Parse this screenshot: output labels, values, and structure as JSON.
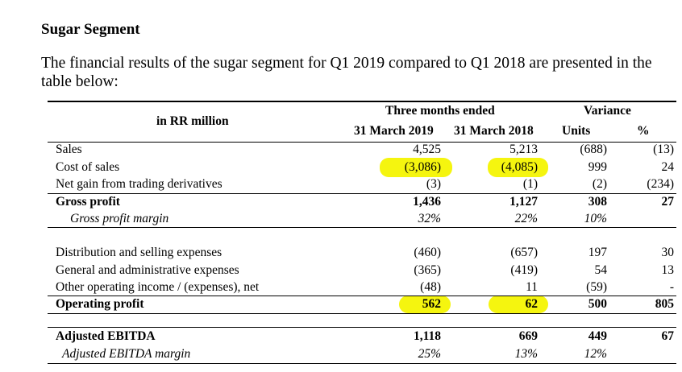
{
  "section_title": "Sugar Segment",
  "intro_text": "The financial results of the sugar segment for Q1 2019 compared to Q1 2018 are presented in the table below:",
  "highlight_color": "#f5f50f",
  "table": {
    "unit_label": "in RR million",
    "group_header": "Three months ended",
    "variance_header": "Variance",
    "col_2019": "31 March 2019",
    "col_2018": "31 March 2018",
    "col_units": "Units",
    "col_pct": "%",
    "rows": [
      {
        "label": "Sales",
        "v2019": "4,525",
        "v2018": "5,213",
        "units": "(688)",
        "pct": "(13)"
      },
      {
        "label": "Cost of sales",
        "v2019": "(3,086)",
        "v2018": "(4,085)",
        "units": "999",
        "pct": "24"
      },
      {
        "label": "Net gain from trading derivatives",
        "v2019": "(3)",
        "v2018": "(1)",
        "units": "(2)",
        "pct": "(234)"
      },
      {
        "label": "Gross profit",
        "v2019": "1,436",
        "v2018": "1,127",
        "units": "308",
        "pct": "27"
      },
      {
        "label": "Gross profit margin",
        "v2019": "32%",
        "v2018": "22%",
        "units": "10%",
        "pct": ""
      },
      {
        "label": "Distribution and selling expenses",
        "v2019": "(460)",
        "v2018": "(657)",
        "units": "197",
        "pct": "30"
      },
      {
        "label": "General and administrative expenses",
        "v2019": "(365)",
        "v2018": "(419)",
        "units": "54",
        "pct": "13"
      },
      {
        "label": "Other operating income / (expenses), net",
        "v2019": "(48)",
        "v2018": "11",
        "units": "(59)",
        "pct": "-"
      },
      {
        "label": "Operating profit",
        "v2019": "562",
        "v2018": "62",
        "units": "500",
        "pct": "805"
      },
      {
        "label": "Adjusted EBITDA",
        "v2019": "1,118",
        "v2018": "669",
        "units": "449",
        "pct": "67"
      },
      {
        "label": "Adjusted EBITDA margin",
        "v2019": "25%",
        "v2018": "13%",
        "units": "12%",
        "pct": ""
      }
    ]
  }
}
